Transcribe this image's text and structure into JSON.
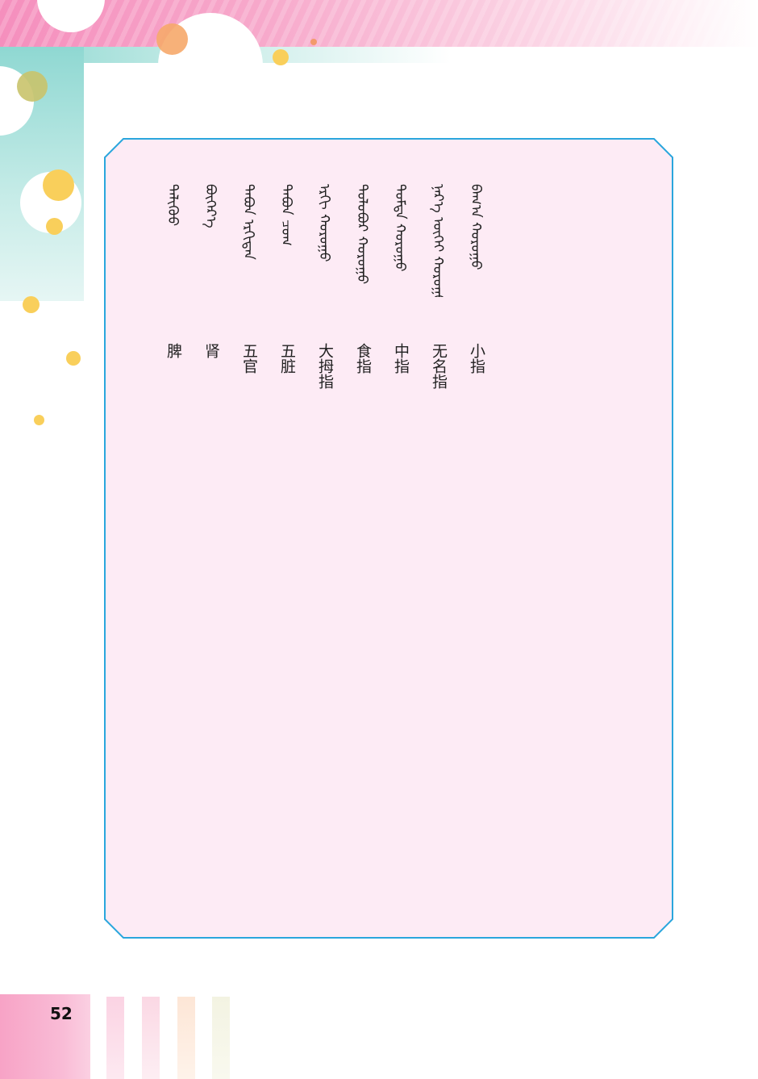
{
  "page": {
    "number": "52"
  },
  "terms": [
    {
      "mongolian": "ᠪᠠᠭ᠎ᠠ ᠬᠤᠷᠤᠭᠤ",
      "chinese": "小指"
    },
    {
      "mongolian": "ᠨᠡᠷ᠎ᠡ ᠦᠭᠡᠢ ᠬᠤᠷᠤᠭᠤ",
      "chinese": "无名指"
    },
    {
      "mongolian": "ᠳᠤᠮᠳᠠ ᠬᠤᠷᠤᠭᠤ",
      "chinese": "中指"
    },
    {
      "mongolian": "ᠳᠣᠯᠣᠪᠤᠷ ᠬᠤᠷᠤᠭᠤ",
      "chinese": "食指"
    },
    {
      "mongolian": "ᠡᠷᠬᠢ ᠬᠤᠷᠤᠭᠤ",
      "chinese": "大拇指"
    },
    {
      "mongolian": "ᠲᠠᠪᠤᠨ ᠴᠣᠭ",
      "chinese": "五脏"
    },
    {
      "mongolian": "ᠲᠠᠪᠤᠨ ᠡᠷᠬᠢᠲᠡᠨ",
      "chinese": "五官"
    },
    {
      "mongolian": "ᠪᠥᠭᠡᠷ᠎ᠡ",
      "chinese": "肾"
    },
    {
      "mongolian": "ᠳᠡᠯᠢᠭᠦᠦ",
      "chinese": "脾"
    }
  ],
  "colors": {
    "panel_background": "#fdebf5",
    "panel_border": "#2aa6dd",
    "accent_pink": "#f58fbd",
    "accent_teal": "#8fd8d2",
    "dot_yellow": "#f9cf5b"
  }
}
